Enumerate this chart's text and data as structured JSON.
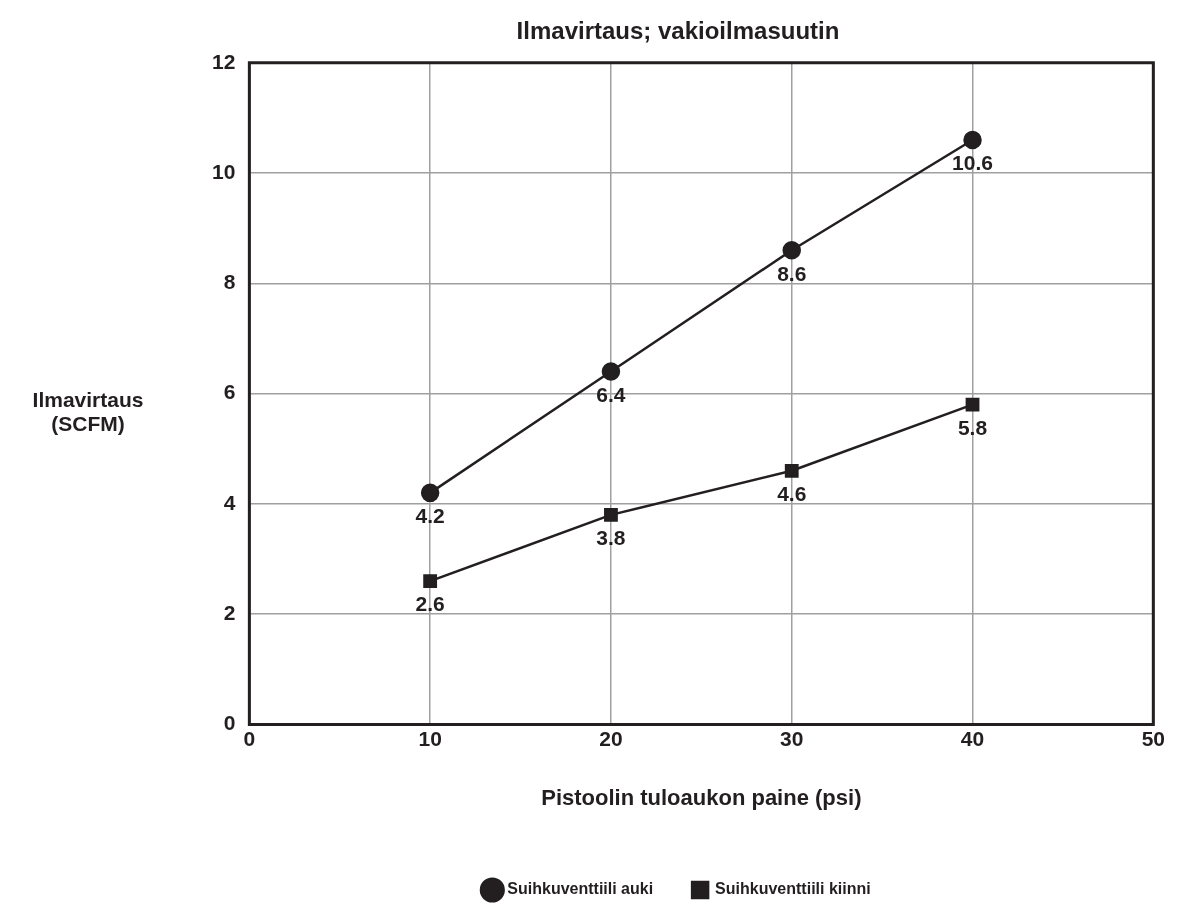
{
  "chart_data": {
    "type": "line",
    "title": "Ilmavirtaus; vakioilmasuutin",
    "xlabel": "Pistoolin tuloaukon paine (psi)",
    "ylabel": "Ilmavirtaus (SCFM)",
    "x": [
      10,
      20,
      30,
      40
    ],
    "series": [
      {
        "name": "Suihkuventtiili auki",
        "color": "#231f20",
        "marker": "circle",
        "values": [
          4.2,
          6.4,
          8.6,
          10.6
        ]
      },
      {
        "name": "Suihkuventtiili kiinni",
        "color": "#231f20",
        "marker": "square",
        "values": [
          2.6,
          3.8,
          4.6,
          5.8
        ]
      }
    ],
    "xlim": [
      0,
      50
    ],
    "xticks": [
      0,
      10,
      20,
      30,
      40,
      50
    ],
    "ylim": [
      0,
      12
    ],
    "yticks": [
      0,
      2,
      4,
      6,
      8,
      10,
      12
    ],
    "grid": true,
    "legend": "bottom",
    "data_labels": true,
    "line_style": "solid"
  }
}
